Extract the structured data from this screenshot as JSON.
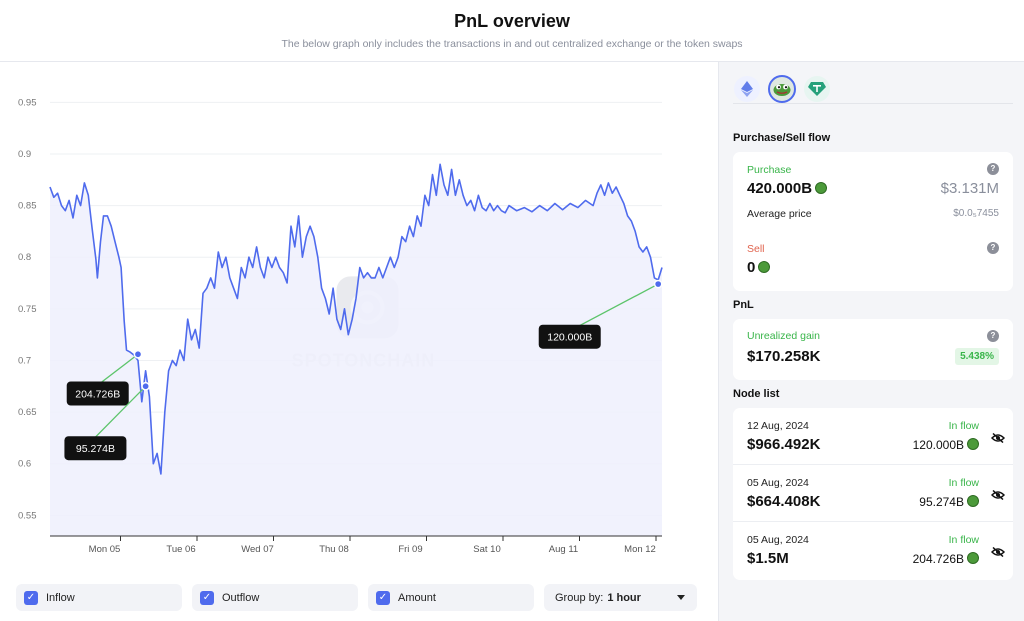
{
  "header": {
    "title": "PnL overview",
    "subtitle": "The below graph only includes the transactions in and out centralized exchange or the token swaps"
  },
  "chart_data": {
    "type": "line",
    "y_ticks": [
      "0.95",
      "0.9",
      "0.85",
      "0.8",
      "0.75",
      "0.7",
      "0.65",
      "0.6",
      "0.55"
    ],
    "y_tick_values": [
      0.95,
      0.9,
      0.85,
      0.8,
      0.75,
      0.7,
      0.65,
      0.6,
      0.55
    ],
    "ylim": [
      0.53,
      0.96
    ],
    "x_ticks": [
      "Mon 05",
      "Tue 06",
      "Wed 07",
      "Thu 08",
      "Fri 09",
      "Sat 10",
      "Aug 11",
      "Mon 12"
    ],
    "x_tick_pos": [
      1,
      2,
      3,
      4,
      5,
      6,
      7,
      8
    ],
    "xlim": [
      0.0,
      8.0
    ],
    "series": [
      {
        "color": "#4f6bed",
        "points": [
          [
            0.0,
            0.868
          ],
          [
            0.05,
            0.858
          ],
          [
            0.1,
            0.862
          ],
          [
            0.15,
            0.85
          ],
          [
            0.2,
            0.845
          ],
          [
            0.25,
            0.855
          ],
          [
            0.3,
            0.838
          ],
          [
            0.35,
            0.86
          ],
          [
            0.4,
            0.85
          ],
          [
            0.45,
            0.872
          ],
          [
            0.5,
            0.86
          ],
          [
            0.55,
            0.828
          ],
          [
            0.6,
            0.798
          ],
          [
            0.62,
            0.78
          ],
          [
            0.66,
            0.815
          ],
          [
            0.7,
            0.84
          ],
          [
            0.75,
            0.84
          ],
          [
            0.8,
            0.83
          ],
          [
            0.85,
            0.815
          ],
          [
            0.9,
            0.8
          ],
          [
            0.93,
            0.79
          ],
          [
            0.97,
            0.738
          ],
          [
            1.0,
            0.71
          ],
          [
            1.05,
            0.708
          ],
          [
            1.1,
            0.705
          ],
          [
            1.15,
            0.7
          ],
          [
            1.2,
            0.66
          ],
          [
            1.25,
            0.69
          ],
          [
            1.3,
            0.665
          ],
          [
            1.35,
            0.6
          ],
          [
            1.4,
            0.61
          ],
          [
            1.45,
            0.59
          ],
          [
            1.5,
            0.65
          ],
          [
            1.55,
            0.69
          ],
          [
            1.6,
            0.7
          ],
          [
            1.65,
            0.695
          ],
          [
            1.7,
            0.71
          ],
          [
            1.75,
            0.7
          ],
          [
            1.8,
            0.74
          ],
          [
            1.85,
            0.72
          ],
          [
            1.9,
            0.73
          ],
          [
            1.95,
            0.712
          ],
          [
            2.0,
            0.765
          ],
          [
            2.05,
            0.77
          ],
          [
            2.1,
            0.78
          ],
          [
            2.15,
            0.77
          ],
          [
            2.2,
            0.805
          ],
          [
            2.25,
            0.79
          ],
          [
            2.3,
            0.8
          ],
          [
            2.35,
            0.78
          ],
          [
            2.4,
            0.77
          ],
          [
            2.45,
            0.76
          ],
          [
            2.5,
            0.79
          ],
          [
            2.55,
            0.78
          ],
          [
            2.6,
            0.8
          ],
          [
            2.65,
            0.79
          ],
          [
            2.7,
            0.81
          ],
          [
            2.75,
            0.79
          ],
          [
            2.8,
            0.78
          ],
          [
            2.85,
            0.8
          ],
          [
            2.9,
            0.79
          ],
          [
            2.95,
            0.8
          ],
          [
            3.0,
            0.79
          ],
          [
            3.05,
            0.785
          ],
          [
            3.1,
            0.775
          ],
          [
            3.15,
            0.83
          ],
          [
            3.2,
            0.81
          ],
          [
            3.25,
            0.84
          ],
          [
            3.3,
            0.8
          ],
          [
            3.35,
            0.82
          ],
          [
            3.4,
            0.83
          ],
          [
            3.45,
            0.82
          ],
          [
            3.5,
            0.8
          ],
          [
            3.55,
            0.77
          ],
          [
            3.6,
            0.76
          ],
          [
            3.65,
            0.745
          ],
          [
            3.7,
            0.77
          ],
          [
            3.75,
            0.74
          ],
          [
            3.8,
            0.73
          ],
          [
            3.85,
            0.75
          ],
          [
            3.9,
            0.725
          ],
          [
            3.95,
            0.74
          ],
          [
            4.0,
            0.76
          ],
          [
            4.05,
            0.79
          ],
          [
            4.1,
            0.78
          ],
          [
            4.15,
            0.785
          ],
          [
            4.2,
            0.78
          ],
          [
            4.25,
            0.78
          ],
          [
            4.3,
            0.79
          ],
          [
            4.35,
            0.78
          ],
          [
            4.4,
            0.79
          ],
          [
            4.45,
            0.8
          ],
          [
            4.5,
            0.79
          ],
          [
            4.55,
            0.8
          ],
          [
            4.6,
            0.82
          ],
          [
            4.65,
            0.815
          ],
          [
            4.7,
            0.83
          ],
          [
            4.75,
            0.82
          ],
          [
            4.8,
            0.84
          ],
          [
            4.85,
            0.83
          ],
          [
            4.9,
            0.86
          ],
          [
            4.95,
            0.85
          ],
          [
            5.0,
            0.88
          ],
          [
            5.05,
            0.86
          ],
          [
            5.1,
            0.89
          ],
          [
            5.15,
            0.87
          ],
          [
            5.2,
            0.86
          ],
          [
            5.25,
            0.885
          ],
          [
            5.3,
            0.86
          ],
          [
            5.35,
            0.875
          ],
          [
            5.4,
            0.86
          ],
          [
            5.45,
            0.85
          ],
          [
            5.5,
            0.855
          ],
          [
            5.55,
            0.845
          ],
          [
            5.6,
            0.86
          ],
          [
            5.65,
            0.848
          ],
          [
            5.7,
            0.845
          ],
          [
            5.75,
            0.852
          ],
          [
            5.8,
            0.845
          ],
          [
            5.85,
            0.85
          ],
          [
            5.9,
            0.845
          ],
          [
            5.95,
            0.843
          ],
          [
            6.0,
            0.85
          ],
          [
            6.1,
            0.845
          ],
          [
            6.2,
            0.848
          ],
          [
            6.3,
            0.844
          ],
          [
            6.4,
            0.85
          ],
          [
            6.5,
            0.845
          ],
          [
            6.6,
            0.852
          ],
          [
            6.7,
            0.846
          ],
          [
            6.8,
            0.852
          ],
          [
            6.9,
            0.848
          ],
          [
            7.0,
            0.855
          ],
          [
            7.1,
            0.85
          ],
          [
            7.15,
            0.862
          ],
          [
            7.2,
            0.87
          ],
          [
            7.25,
            0.86
          ],
          [
            7.3,
            0.872
          ],
          [
            7.35,
            0.862
          ],
          [
            7.4,
            0.868
          ],
          [
            7.45,
            0.86
          ],
          [
            7.5,
            0.852
          ],
          [
            7.55,
            0.84
          ],
          [
            7.6,
            0.835
          ],
          [
            7.65,
            0.825
          ],
          [
            7.7,
            0.81
          ],
          [
            7.75,
            0.805
          ],
          [
            7.8,
            0.81
          ],
          [
            7.85,
            0.8
          ],
          [
            7.9,
            0.78
          ],
          [
            7.95,
            0.778
          ],
          [
            8.0,
            0.79
          ]
        ]
      }
    ],
    "markers": [
      {
        "x": 1.15,
        "y": 0.706,
        "label": "204.726B",
        "label_x": 0.48,
        "label_y": 0.668
      },
      {
        "x": 1.25,
        "y": 0.675,
        "label": "95.274B",
        "label_x": 0.45,
        "label_y": 0.615
      },
      {
        "x": 7.95,
        "y": 0.774,
        "label": "120.000B",
        "label_x": 6.65,
        "label_y": 0.723
      }
    ],
    "watermark": "SPOTONCHAIN"
  },
  "controls": {
    "inflow_label": "Inflow",
    "outflow_label": "Outflow",
    "amount_label": "Amount",
    "group_by_label": "Group by:",
    "group_by_value": "1 hour"
  },
  "sidebar": {
    "tokens": [
      "ethereum-icon",
      "pepe-icon",
      "tether-icon"
    ],
    "flow_title": "Purchase/Sell flow",
    "purchase_label": "Purchase",
    "purchase_amount": "420.000B",
    "purchase_usd": "$3.131M",
    "avg_price_label": "Average price",
    "avg_price_value": "$0.0₅7455",
    "sell_label": "Sell",
    "sell_amount": "0",
    "pnl_title": "PnL",
    "unrealized_label": "Unrealized gain",
    "unrealized_value": "$170.258K",
    "unrealized_pct": "5.438%",
    "node_title": "Node list",
    "nodes": [
      {
        "date": "12 Aug, 2024",
        "flow": "In flow",
        "usd": "$966.492K",
        "amount": "120.000B"
      },
      {
        "date": "05 Aug, 2024",
        "flow": "In flow",
        "usd": "$664.408K",
        "amount": "95.274B"
      },
      {
        "date": "05 Aug, 2024",
        "flow": "In flow",
        "usd": "$1.5M",
        "amount": "204.726B"
      }
    ]
  },
  "colors": {
    "line": "#4f6bed",
    "fill": "#eef0fd",
    "marker_line": "#5cc46a",
    "accent": "#4f6bed",
    "green": "#39b54a"
  }
}
